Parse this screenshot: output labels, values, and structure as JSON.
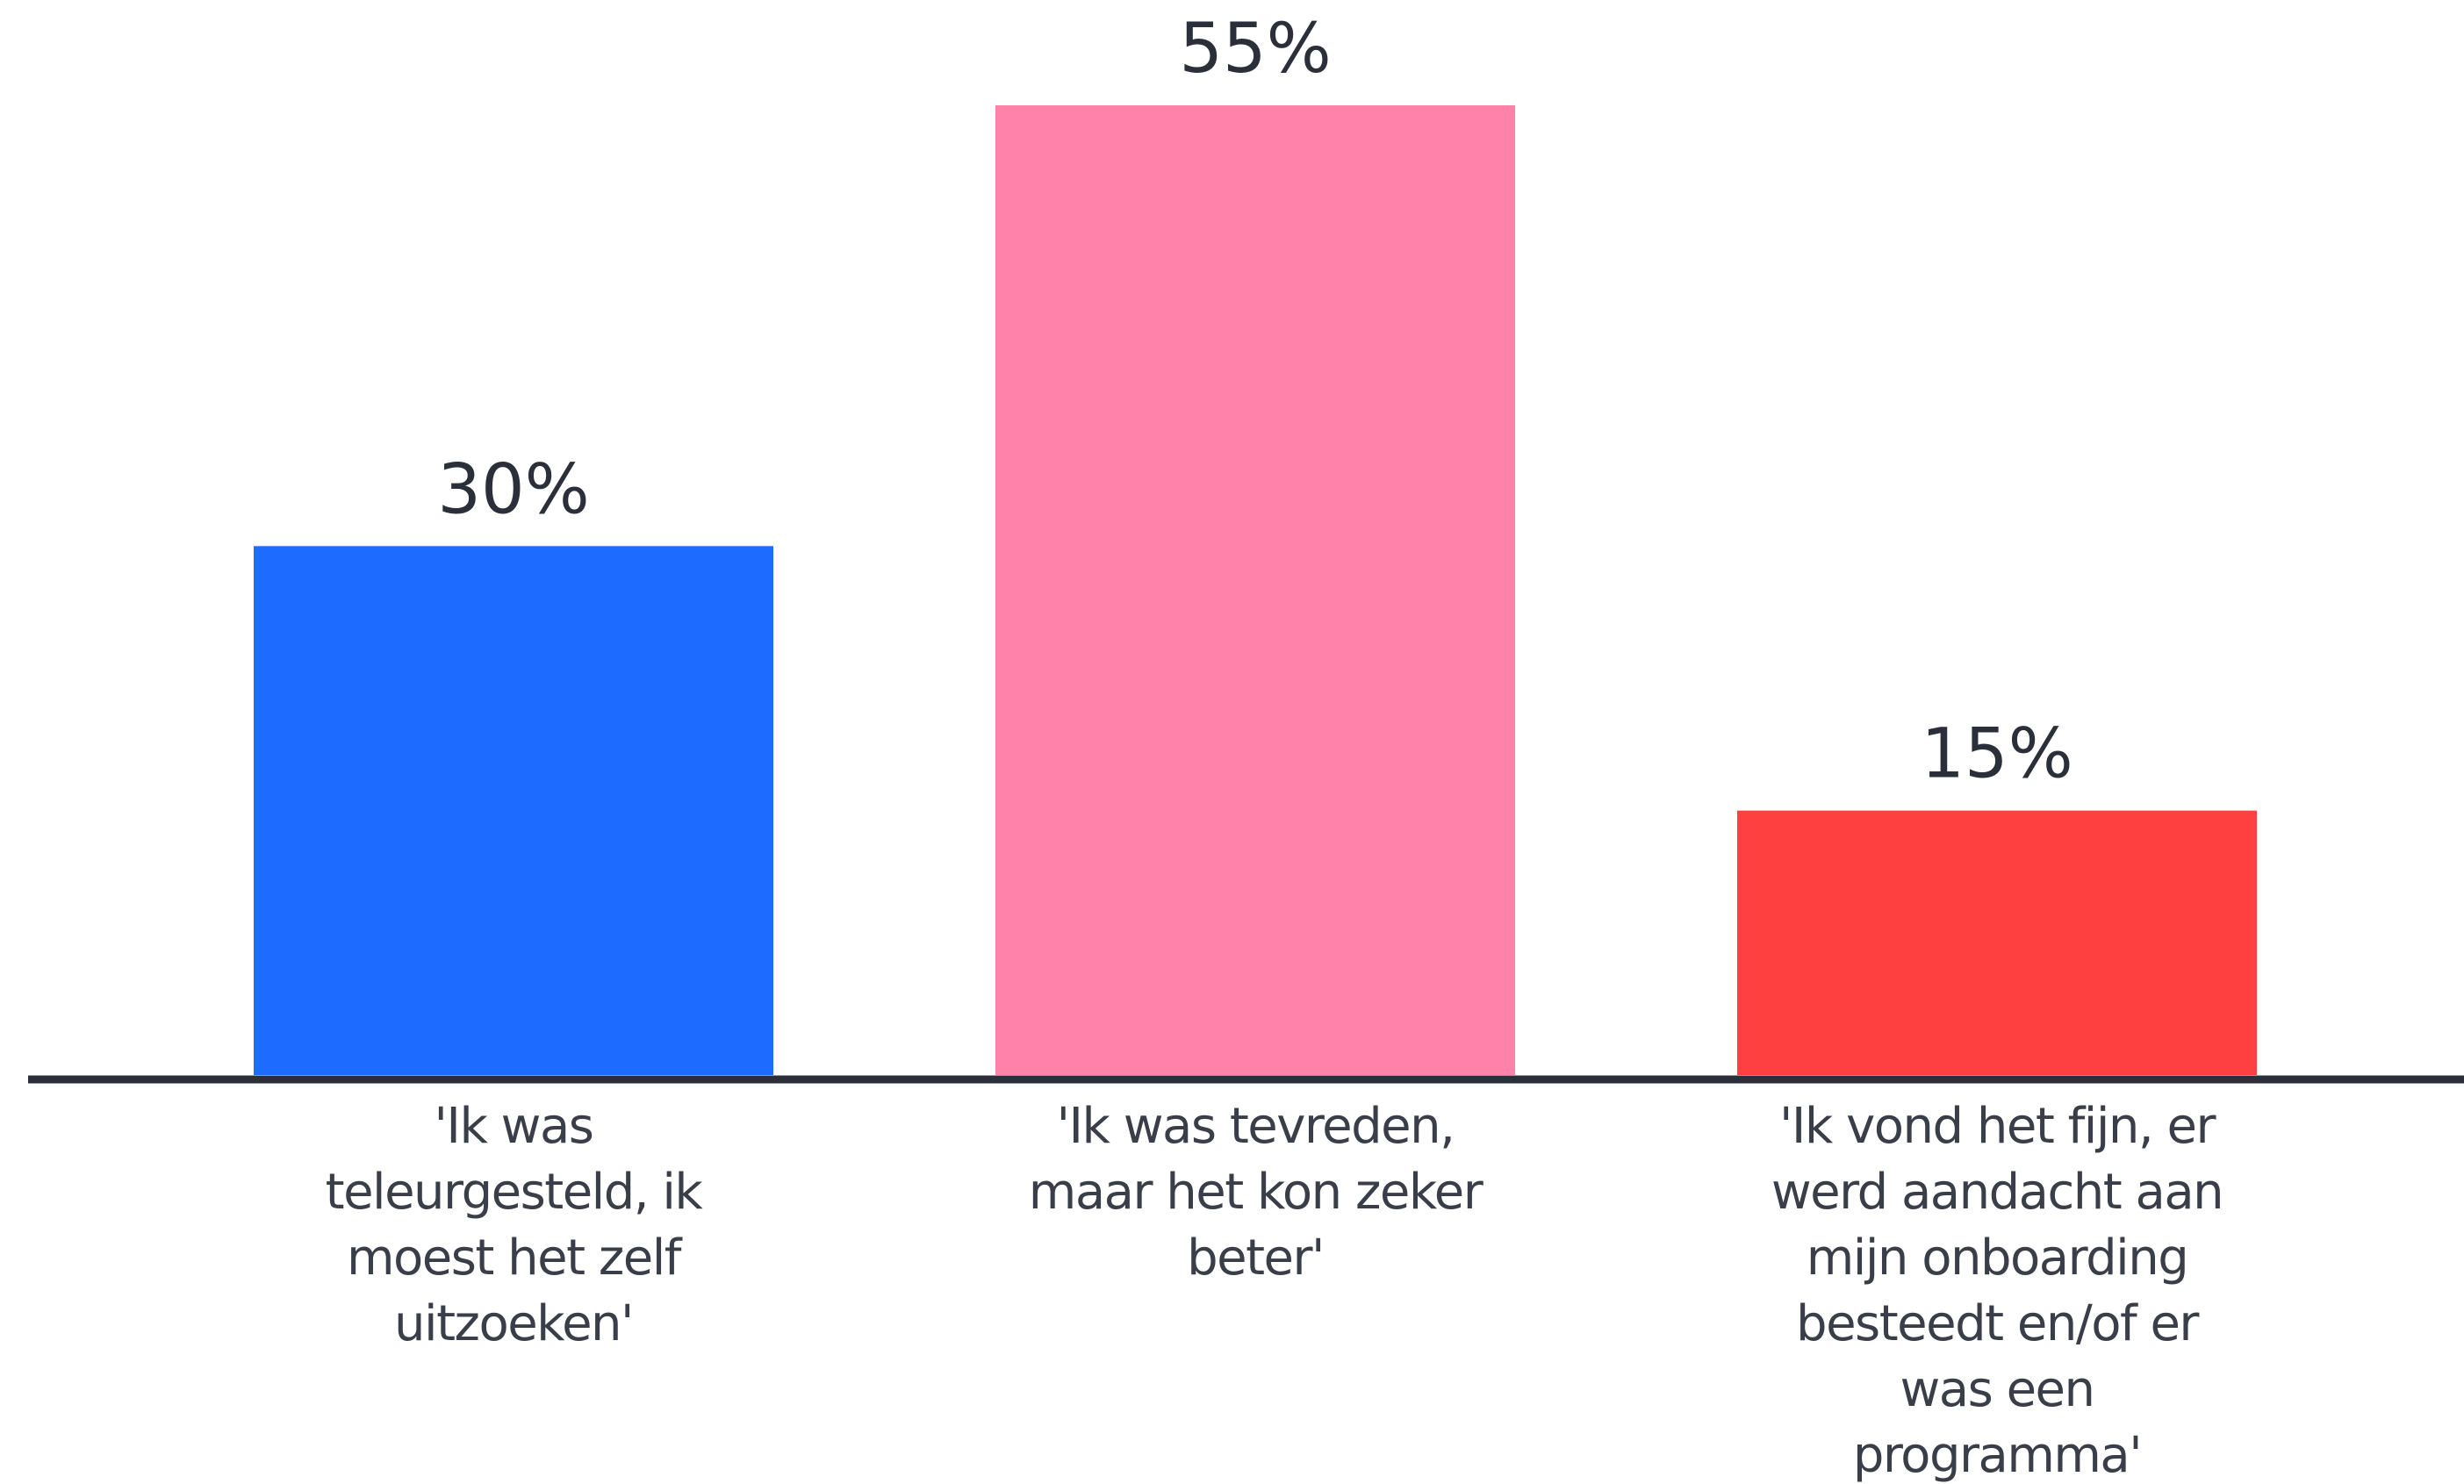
{
  "chart_data": {
    "type": "bar",
    "categories": [
      [
        "'Ik was",
        "teleurgesteld, ik",
        "moest het zelf",
        "uitzoeken'"
      ],
      [
        "'Ik was tevreden,",
        "maar het kon zeker",
        "beter'"
      ],
      [
        "'Ik vond het fijn, er",
        "werd aandacht aan",
        "mijn onboarding",
        "besteedt en/of er",
        "was een",
        "programma'"
      ]
    ],
    "values": [
      30,
      55,
      15
    ],
    "value_labels": [
      "30%",
      "55%",
      "15%"
    ],
    "colors": [
      "#1e6bff",
      "#ff82aa",
      "#ff4040"
    ],
    "axis_color": "#2b2f3a",
    "ylim": [
      0,
      55
    ],
    "grid": false,
    "title": "",
    "xlabel": "",
    "ylabel": ""
  }
}
